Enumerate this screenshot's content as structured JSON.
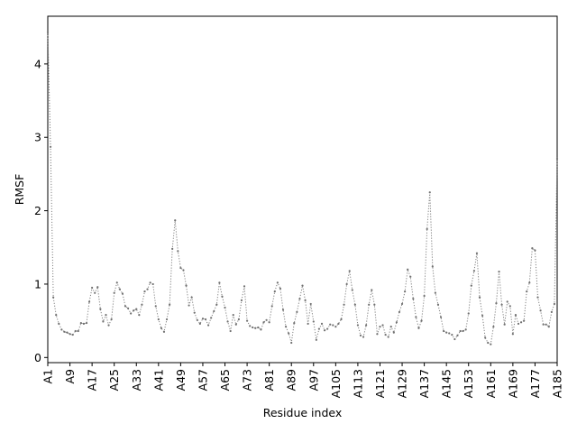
{
  "chart_data": {
    "type": "line",
    "title": "",
    "xlabel": "Residue index",
    "ylabel": "RMSF",
    "xlim": [
      1,
      185
    ],
    "ylim": [
      -0.07,
      4.65
    ],
    "y_ticks": [
      0,
      1,
      2,
      3,
      4
    ],
    "x_ticks": [
      1,
      9,
      17,
      25,
      33,
      41,
      49,
      57,
      65,
      73,
      81,
      89,
      97,
      105,
      113,
      121,
      129,
      137,
      145,
      153,
      161,
      169,
      177,
      185
    ],
    "x_tick_labels": [
      "A1",
      "A9",
      "A17",
      "A25",
      "A33",
      "A41",
      "A49",
      "A57",
      "A65",
      "A73",
      "A81",
      "A89",
      "A97",
      "A105",
      "A113",
      "A121",
      "A129",
      "A137",
      "A145",
      "A153",
      "A161",
      "A169",
      "A177",
      "A185"
    ],
    "line_style": "dotted",
    "marker": "small-dot",
    "color": "#808080",
    "grid": false,
    "series": [
      {
        "values": [
          4.43,
          2.87,
          0.82,
          0.58,
          0.46,
          0.38,
          0.35,
          0.34,
          0.32,
          0.31,
          0.36,
          0.36,
          0.47,
          0.46,
          0.47,
          0.76,
          0.95,
          0.88,
          0.96,
          0.66,
          0.49,
          0.58,
          0.44,
          0.52,
          0.88,
          1.02,
          0.93,
          0.87,
          0.7,
          0.67,
          0.6,
          0.64,
          0.66,
          0.58,
          0.72,
          0.9,
          0.93,
          1.02,
          1.0,
          0.7,
          0.52,
          0.4,
          0.35,
          0.52,
          0.72,
          1.48,
          1.87,
          1.45,
          1.22,
          1.19,
          0.98,
          0.71,
          0.82,
          0.61,
          0.51,
          0.46,
          0.53,
          0.52,
          0.44,
          0.54,
          0.63,
          0.72,
          1.02,
          0.83,
          0.68,
          0.49,
          0.36,
          0.58,
          0.45,
          0.52,
          0.78,
          0.97,
          0.5,
          0.43,
          0.41,
          0.4,
          0.41,
          0.38,
          0.48,
          0.51,
          0.48,
          0.7,
          0.9,
          1.02,
          0.94,
          0.65,
          0.42,
          0.33,
          0.2,
          0.47,
          0.62,
          0.8,
          0.98,
          0.78,
          0.46,
          0.73,
          0.49,
          0.24,
          0.39,
          0.46,
          0.37,
          0.39,
          0.45,
          0.44,
          0.42,
          0.46,
          0.52,
          0.72,
          1.0,
          1.18,
          0.92,
          0.72,
          0.44,
          0.3,
          0.28,
          0.44,
          0.72,
          0.92,
          0.72,
          0.32,
          0.42,
          0.44,
          0.31,
          0.28,
          0.42,
          0.34,
          0.48,
          0.62,
          0.73,
          0.9,
          1.2,
          1.1,
          0.8,
          0.55,
          0.4,
          0.5,
          0.84,
          1.75,
          2.25,
          1.24,
          0.88,
          0.72,
          0.55,
          0.36,
          0.34,
          0.33,
          0.31,
          0.25,
          0.3,
          0.36,
          0.36,
          0.38,
          0.6,
          0.98,
          1.18,
          1.42,
          0.82,
          0.57,
          0.27,
          0.2,
          0.18,
          0.42,
          0.74,
          1.17,
          0.72,
          0.45,
          0.76,
          0.7,
          0.32,
          0.58,
          0.46,
          0.48,
          0.5,
          0.9,
          1.02,
          1.49,
          1.46,
          0.82,
          0.64,
          0.45,
          0.45,
          0.42,
          0.62,
          0.73,
          2.71
        ]
      }
    ]
  }
}
